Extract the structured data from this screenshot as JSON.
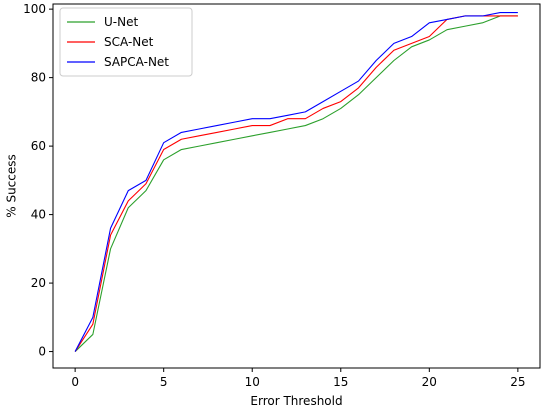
{
  "chart_data": {
    "type": "line",
    "xlabel": "Error Threshold",
    "ylabel": "% Success",
    "xlim": [
      -1.25,
      26.25
    ],
    "ylim": [
      -4.8,
      101.5
    ],
    "xticks": [
      0,
      5,
      10,
      15,
      20,
      25
    ],
    "yticks": [
      0,
      20,
      40,
      60,
      80,
      100
    ],
    "grid": false,
    "legend_position": "upper-left",
    "x": [
      0,
      1,
      2,
      3,
      4,
      5,
      6,
      7,
      8,
      9,
      10,
      11,
      12,
      13,
      14,
      15,
      16,
      17,
      18,
      19,
      20,
      21,
      22,
      23,
      24,
      25
    ],
    "series": [
      {
        "name": "U-Net",
        "color": "#2ca02c",
        "values": [
          0,
          5,
          30,
          42,
          47,
          56,
          59,
          60,
          61,
          62,
          63,
          64,
          65,
          66,
          68,
          71,
          75,
          80,
          85,
          89,
          91,
          94,
          95,
          96,
          98,
          98
        ]
      },
      {
        "name": "SCA-Net",
        "color": "#ff0000",
        "values": [
          0,
          8,
          34,
          44,
          49,
          59,
          62,
          63,
          64,
          65,
          66,
          66,
          68,
          68,
          71,
          73,
          77,
          83,
          88,
          90,
          92,
          97,
          98,
          98,
          98,
          98
        ]
      },
      {
        "name": "SAPCA-Net",
        "color": "#0000ff",
        "values": [
          0,
          10,
          36,
          47,
          50,
          61,
          64,
          65,
          66,
          67,
          68,
          68,
          69,
          70,
          73,
          76,
          79,
          85,
          90,
          92,
          96,
          97,
          98,
          98,
          99,
          99
        ]
      }
    ]
  }
}
